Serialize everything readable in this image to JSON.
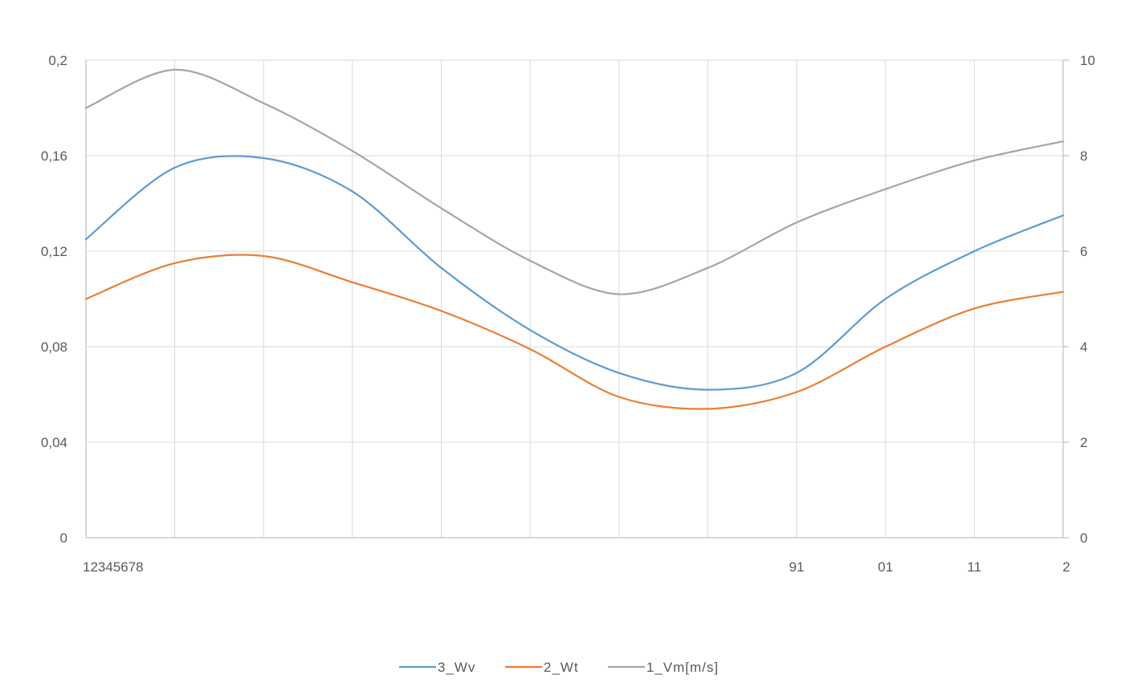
{
  "chart_data": {
    "type": "line",
    "title": "",
    "xlabel": "",
    "ylabel": "",
    "x_tick_labels": [
      "12345678",
      "",
      "",
      "",
      "",
      "",
      "",
      "",
      "91",
      "01",
      "11",
      "2"
    ],
    "y_left": {
      "ticks": [
        "0",
        "0,04",
        "0,08",
        "0,12",
        "0,16",
        "0,2"
      ],
      "range": [
        0,
        0.2
      ]
    },
    "y_right": {
      "ticks": [
        "0",
        "2",
        "4",
        "6",
        "8",
        "10"
      ],
      "range": [
        0,
        10
      ]
    },
    "grid": true,
    "legend_position": "bottom",
    "series": [
      {
        "name": "3_Wv",
        "axis": "left",
        "color": "#5b9bd5",
        "values": [
          0.125,
          0.155,
          0.159,
          0.145,
          0.113,
          0.087,
          0.069,
          0.062,
          0.069,
          0.1,
          0.12,
          0.135
        ]
      },
      {
        "name": "2_Wt",
        "axis": "left",
        "color": "#ed7d31",
        "values": [
          0.1,
          0.115,
          0.118,
          0.107,
          0.095,
          0.079,
          0.059,
          0.054,
          0.061,
          0.08,
          0.096,
          0.103
        ]
      },
      {
        "name": "1_Vm[m/s]",
        "axis": "right",
        "color": "#a5a5a5",
        "values": [
          9.0,
          9.8,
          9.1,
          8.1,
          6.9,
          5.8,
          5.1,
          5.65,
          6.6,
          7.3,
          7.9,
          8.3
        ]
      }
    ]
  }
}
